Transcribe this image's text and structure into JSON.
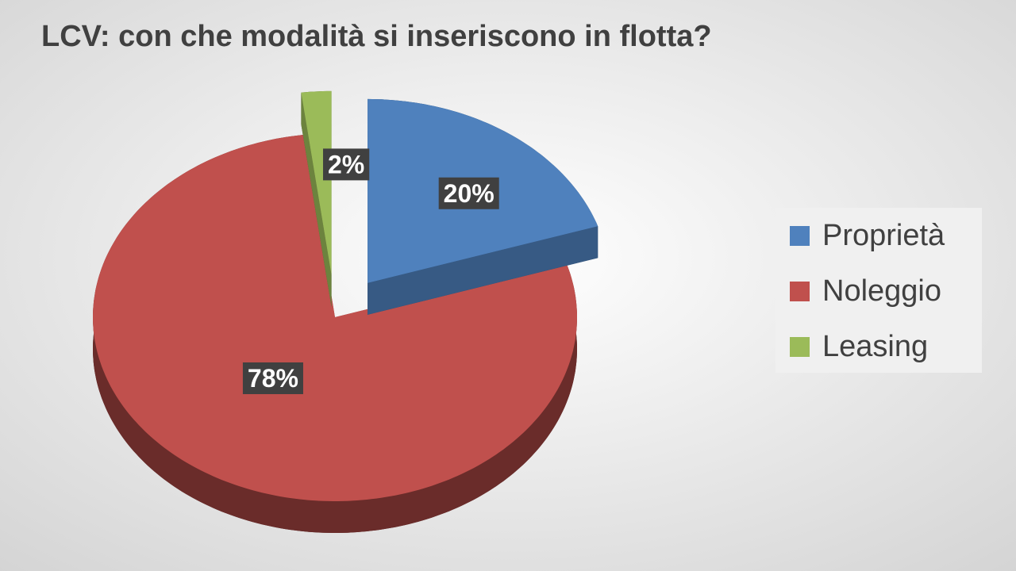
{
  "chart_data": {
    "type": "pie",
    "title": "LCV: con che modalità si inseriscono in flotta?",
    "categories": [
      "Proprietà",
      "Noleggio",
      "Leasing"
    ],
    "values": [
      20,
      78,
      2
    ],
    "value_labels": [
      "20%",
      "78%",
      "2%"
    ],
    "colors": [
      "#4f81bd",
      "#c0504d",
      "#9bbb59"
    ],
    "legend": "right"
  }
}
